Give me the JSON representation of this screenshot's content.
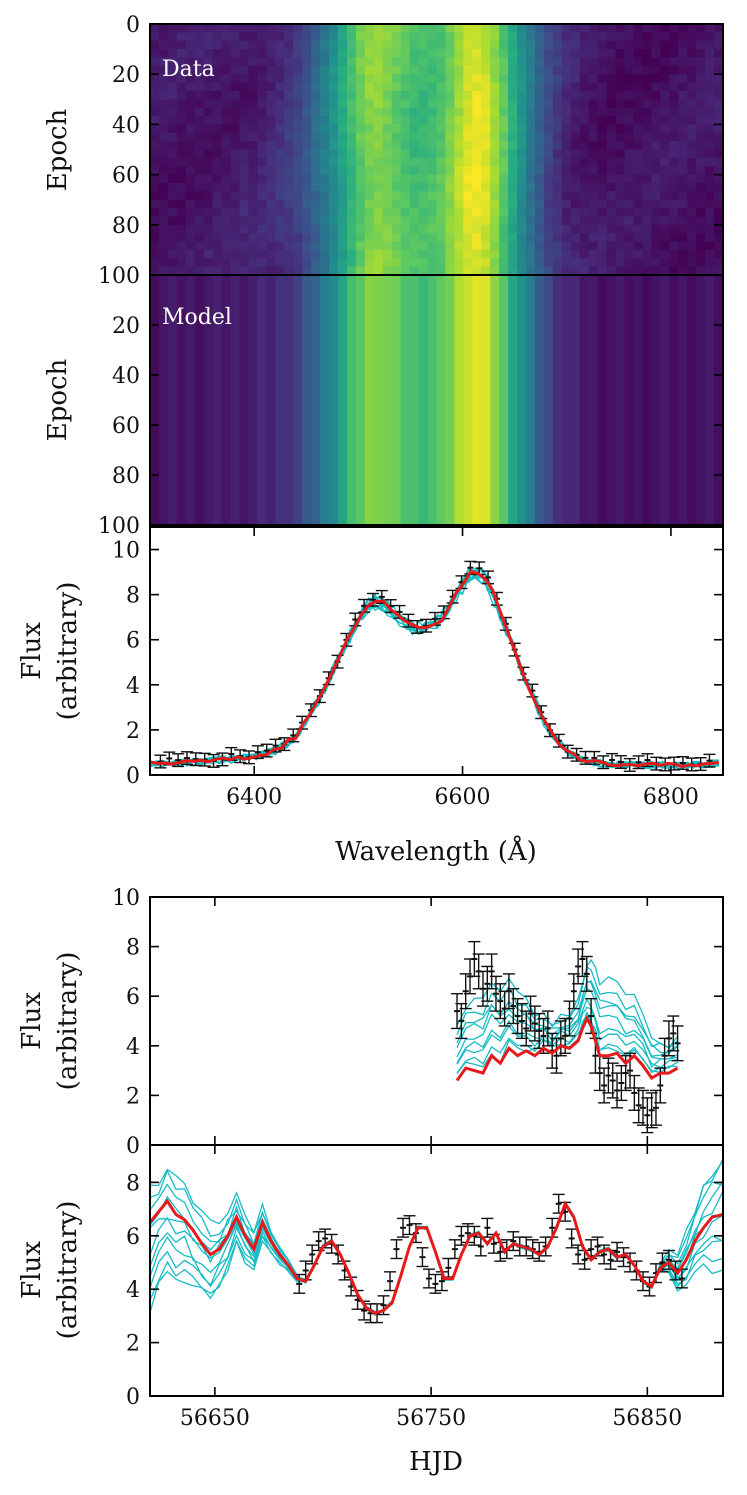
{
  "colors": {
    "data_errorbars": "#111111",
    "model_best": "#e8191b",
    "model_samples": "#17bcc4",
    "map_low": "#440154",
    "map_high": "#fde725"
  },
  "chart_data": [
    {
      "type": "heatmap",
      "name": "data-spectra-heatmap",
      "label": "Data",
      "ylabel": "Epoch",
      "yticks": [
        "0",
        "20",
        "40",
        "60",
        "80",
        "100"
      ],
      "ylim": [
        0,
        100
      ],
      "xlim": [
        6300,
        6850
      ],
      "colormap": "viridis"
    },
    {
      "type": "heatmap",
      "name": "model-spectra-heatmap",
      "label": "Model",
      "ylabel": "Epoch",
      "yticks": [
        "20",
        "40",
        "60",
        "80",
        "100"
      ],
      "ylim": [
        0,
        100
      ],
      "xlim": [
        6300,
        6850
      ],
      "colormap": "viridis"
    },
    {
      "type": "line",
      "name": "mean-spectrum",
      "ylabel": [
        "Flux",
        "(arbitrary)"
      ],
      "xlabel": "Wavelength (Å)",
      "xlim": [
        6300,
        6850
      ],
      "ylim": [
        0,
        11
      ],
      "xticks": [
        "6400",
        "6600",
        "6800"
      ],
      "yticks": [
        "0",
        "2",
        "4",
        "6",
        "8",
        "10"
      ],
      "profile": {
        "x": [
          6300,
          6350,
          6400,
          6420,
          6440,
          6460,
          6480,
          6500,
          6510,
          6520,
          6535,
          6550,
          6565,
          6580,
          6595,
          6610,
          6625,
          6640,
          6660,
          6680,
          6700,
          6720,
          6750,
          6800,
          6850
        ],
        "y": [
          0.5,
          0.6,
          0.8,
          1.1,
          1.7,
          3.2,
          5.0,
          7.0,
          7.6,
          7.8,
          7.2,
          6.6,
          6.5,
          6.9,
          8.1,
          9.2,
          8.6,
          6.8,
          4.3,
          2.2,
          1.0,
          0.6,
          0.45,
          0.45,
          0.5
        ]
      }
    },
    {
      "type": "line",
      "name": "continuum-light-curve",
      "ylabel": [
        "Flux",
        "(arbitrary)"
      ],
      "xlim": [
        6620,
        6885
      ],
      "ylim": [
        0,
        10
      ],
      "yticks": [
        "0",
        "2",
        "4",
        "6",
        "8",
        "10"
      ],
      "data_x": [
        6761,
        6885
      ],
      "data_points": {
        "x": [
          6762,
          6764,
          6766,
          6768,
          6770,
          6772,
          6774,
          6776,
          6778,
          6780,
          6782,
          6784,
          6786,
          6788,
          6790,
          6792,
          6794,
          6796,
          6798,
          6800,
          6802,
          6804,
          6806,
          6808,
          6810,
          6812,
          6814,
          6816,
          6818,
          6820,
          6822,
          6824,
          6826,
          6828,
          6830,
          6832,
          6834,
          6836,
          6838,
          6840,
          6842,
          6844,
          6846,
          6848,
          6850,
          6852,
          6854,
          6856,
          6858,
          6860,
          6862,
          6864
        ],
        "y": [
          5.4,
          5.0,
          6.2,
          6.8,
          7.5,
          7.0,
          6.3,
          6.5,
          7.0,
          6.1,
          5.8,
          5.5,
          6.2,
          5.6,
          5.2,
          5.0,
          4.7,
          5.3,
          4.9,
          4.6,
          4.4,
          4.7,
          3.8,
          3.6,
          4.3,
          4.4,
          5.1,
          6.2,
          7.2,
          7.5,
          6.9,
          5.2,
          3.6,
          2.9,
          2.4,
          2.8,
          2.6,
          2.2,
          2.5,
          2.9,
          3.0,
          2.1,
          1.6,
          1.5,
          1.2,
          1.4,
          1.5,
          2.4,
          3.6,
          4.3,
          4.5,
          4.1
        ],
        "err": 0.7
      },
      "best_model": {
        "x": [
          6762,
          6766,
          6770,
          6774,
          6778,
          6782,
          6786,
          6790,
          6794,
          6798,
          6802,
          6806,
          6810,
          6814,
          6818,
          6820,
          6822,
          6824,
          6826,
          6828,
          6832,
          6836,
          6840,
          6844,
          6848,
          6852,
          6856,
          6860,
          6864
        ],
        "y": [
          2.6,
          3.1,
          3.0,
          2.9,
          3.6,
          3.3,
          3.9,
          3.6,
          3.8,
          3.6,
          3.9,
          3.7,
          4.0,
          3.9,
          4.2,
          4.7,
          5.1,
          4.8,
          4.2,
          3.6,
          3.6,
          3.7,
          3.3,
          3.6,
          3.2,
          2.7,
          2.9,
          2.9,
          3.1
        ]
      }
    },
    {
      "type": "line",
      "name": "driving-light-curve",
      "ylabel": [
        "Flux",
        "(arbitrary)"
      ],
      "xlabel": "HJD",
      "xlim": [
        6620,
        6885
      ],
      "ylim": [
        0,
        9.4
      ],
      "xticks": [
        "56650",
        "56750",
        "56850"
      ],
      "xtick_values": [
        6650,
        6750,
        6850
      ],
      "yticks": [
        "0",
        "2",
        "4",
        "6",
        "8"
      ],
      "data_points": {
        "x": [
          6689,
          6692,
          6695,
          6698,
          6701,
          6704,
          6707,
          6710,
          6713,
          6716,
          6719,
          6722,
          6725,
          6728,
          6731,
          6734,
          6737,
          6740,
          6743,
          6746,
          6749,
          6752,
          6755,
          6758,
          6761,
          6764,
          6767,
          6770,
          6773,
          6776,
          6779,
          6782,
          6785,
          6788,
          6791,
          6794,
          6797,
          6800,
          6803,
          6806,
          6809,
          6812,
          6815,
          6818,
          6821,
          6824,
          6827,
          6830,
          6833,
          6836,
          6839,
          6842,
          6845,
          6848,
          6851,
          6854,
          6857,
          6860,
          6863,
          6866
        ],
        "y": [
          4.2,
          4.7,
          5.3,
          5.8,
          5.9,
          5.7,
          5.3,
          4.7,
          4.1,
          3.6,
          3.2,
          3.1,
          3.1,
          3.4,
          4.3,
          5.5,
          6.3,
          6.4,
          6.1,
          5.2,
          4.4,
          4.2,
          4.3,
          4.8,
          5.5,
          6.0,
          6.1,
          6.0,
          5.6,
          6.3,
          5.7,
          5.4,
          5.5,
          5.8,
          5.6,
          5.6,
          5.5,
          5.4,
          5.6,
          6.3,
          7.2,
          6.9,
          5.9,
          5.3,
          5.1,
          5.5,
          5.6,
          5.3,
          5.1,
          5.4,
          5.2,
          5.0,
          4.7,
          4.3,
          4.1,
          4.6,
          5.0,
          5.1,
          4.7,
          4.4
        ],
        "err": 0.35
      },
      "best_model": {
        "x": [
          6620,
          6624,
          6628,
          6632,
          6636,
          6640,
          6644,
          6648,
          6652,
          6656,
          6660,
          6664,
          6668,
          6672,
          6676,
          6680,
          6684,
          6688,
          6692,
          6696,
          6700,
          6704,
          6708,
          6712,
          6716,
          6720,
          6724,
          6728,
          6732,
          6736,
          6740,
          6744,
          6748,
          6752,
          6756,
          6760,
          6764,
          6768,
          6772,
          6776,
          6780,
          6784,
          6788,
          6792,
          6796,
          6800,
          6804,
          6808,
          6812,
          6816,
          6820,
          6824,
          6828,
          6832,
          6836,
          6840,
          6844,
          6848,
          6852,
          6856,
          6860,
          6864,
          6868,
          6872,
          6876,
          6880,
          6885
        ],
        "y": [
          6.5,
          6.9,
          7.3,
          6.8,
          6.6,
          6.2,
          5.7,
          5.3,
          5.5,
          6.0,
          6.7,
          6.0,
          5.5,
          6.5,
          5.8,
          5.3,
          4.9,
          4.4,
          4.3,
          4.9,
          5.6,
          5.8,
          5.3,
          4.6,
          3.8,
          3.3,
          3.1,
          3.2,
          3.5,
          4.5,
          5.6,
          6.3,
          6.3,
          5.4,
          4.4,
          4.4,
          5.3,
          6.0,
          6.1,
          5.7,
          6.1,
          5.4,
          5.7,
          5.6,
          5.5,
          5.3,
          5.6,
          6.3,
          7.2,
          6.7,
          5.6,
          5.1,
          5.4,
          5.5,
          5.2,
          5.3,
          4.9,
          4.3,
          4.1,
          4.8,
          5.0,
          4.6,
          5.1,
          5.8,
          6.3,
          6.7,
          6.8
        ]
      }
    }
  ]
}
